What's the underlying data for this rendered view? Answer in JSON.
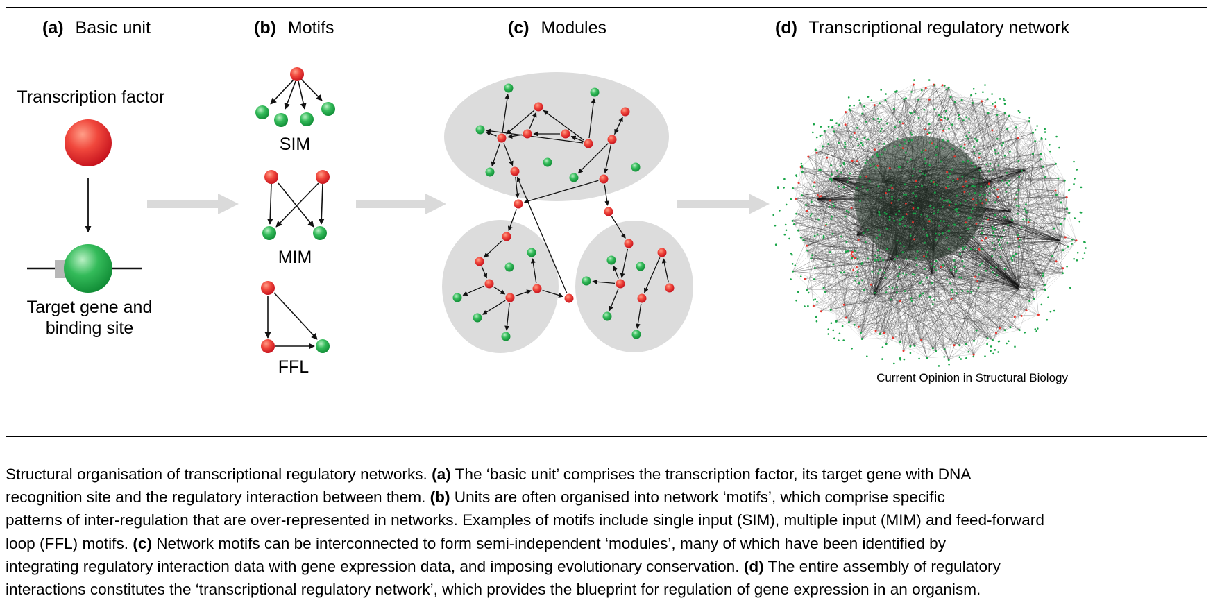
{
  "figure": {
    "panel_a": {
      "letter": "(a)",
      "title": "Basic unit",
      "tf_label": "Transcription factor",
      "target_label_line1": "Target gene and",
      "target_label_line2": "binding site"
    },
    "panel_b": {
      "letter": "(b)",
      "title": "Motifs",
      "sim": "SIM",
      "mim": "MIM",
      "ffl": "FFL"
    },
    "panel_c": {
      "letter": "(c)",
      "title": "Modules"
    },
    "panel_d": {
      "letter": "(d)",
      "title": "Transcriptional regulatory network"
    },
    "credit": "Current Opinion in Structural Biology",
    "colors": {
      "tf_node": "#e8342c",
      "target_node": "#1fa84a",
      "module_bg": "#dcdcdc",
      "flow_arrow": "#dadada"
    }
  },
  "caption": {
    "l1": {
      "t1": "Structural organisation of transcriptional regulatory networks. ",
      "b1": "(a)",
      "t2": " The ‘basic unit’ comprises the transcription factor, its target gene with DNA"
    },
    "l2": {
      "t1": "recognition site and the regulatory interaction between them. ",
      "b1": "(b)",
      "t2": " Units are often organised into network ‘motifs’, which comprise specific"
    },
    "l3": {
      "t1": "patterns of inter-regulation that are over-represented in networks. Examples of motifs include single input (SIM), multiple input (MIM) and feed-forward"
    },
    "l4": {
      "t1": "loop (FFL) motifs. ",
      "b1": "(c)",
      "t2": " Network motifs can be interconnected to form semi-independent ‘modules’, many of which have been identified by"
    },
    "l5": {
      "t1": "integrating regulatory interaction data with gene expression data, and imposing evolutionary conservation. ",
      "b1": "(d)",
      "t2": " The entire assembly of regulatory"
    },
    "l6": {
      "t1": "interactions constitutes the ‘transcriptional regulatory network’, which provides the blueprint for regulation of gene expression in an organism."
    }
  }
}
